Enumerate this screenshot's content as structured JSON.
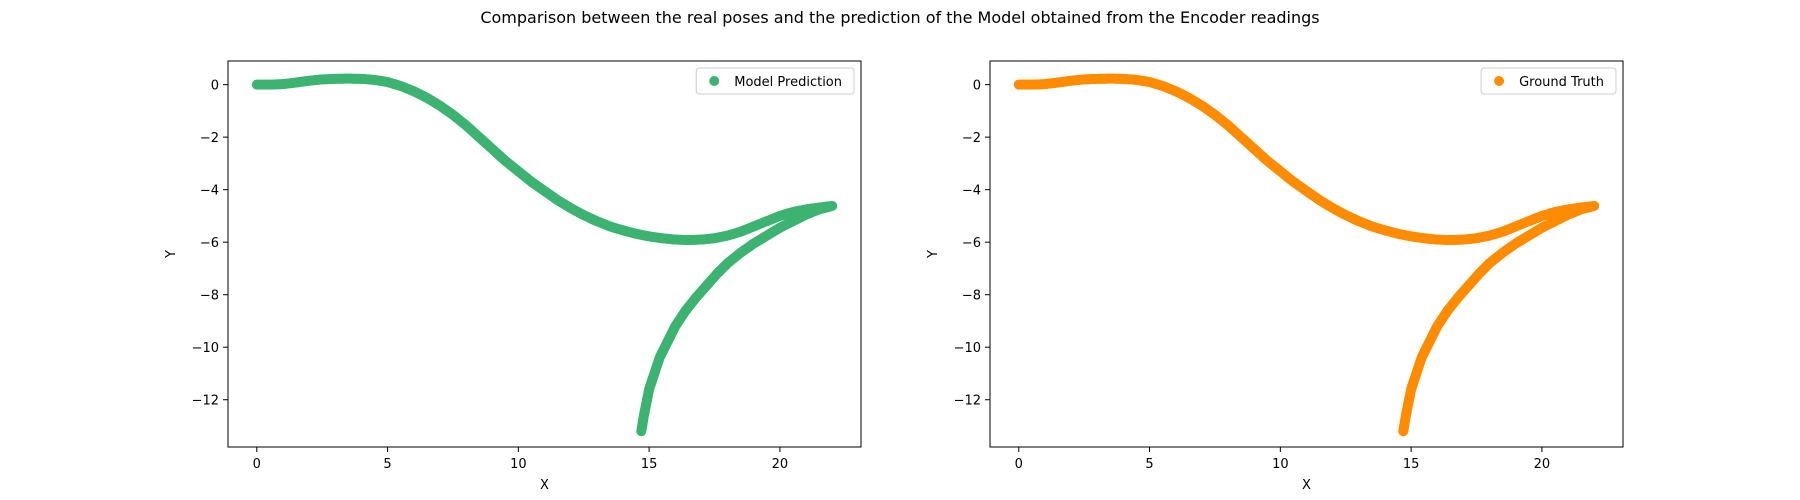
{
  "figure": {
    "title": "Comparison between the real poses and the prediction of the Model obtained from the Encoder readings"
  },
  "chart_data": [
    {
      "type": "scatter",
      "xlabel": "X",
      "ylabel": "Y",
      "xlim": [
        -1.1,
        23.1
      ],
      "ylim": [
        -13.8,
        0.9
      ],
      "xticks": [
        0,
        5,
        10,
        15,
        20
      ],
      "yticks": [
        0,
        -2,
        -4,
        -6,
        -8,
        -10,
        -12
      ],
      "grid": false,
      "legend_position": "top-right",
      "series": [
        {
          "name": "Model Prediction",
          "color": "#3cb371",
          "x": [
            0,
            0.5,
            1,
            1.5,
            2,
            2.5,
            3,
            3.5,
            4,
            4.5,
            5,
            5.5,
            6,
            6.5,
            7,
            7.5,
            8,
            8.5,
            9,
            9.5,
            10,
            10.5,
            11,
            11.5,
            12,
            12.5,
            13,
            13.5,
            14,
            14.5,
            15,
            15.5,
            16,
            16.5,
            17,
            17.5,
            18,
            18.5,
            19,
            19.5,
            20,
            20.5,
            21,
            21.5,
            22,
            21.5,
            21,
            20.5,
            20,
            19.5,
            19,
            18.5,
            18,
            17.6,
            17.2,
            16.8,
            16.4,
            16.0,
            15.7,
            15.4,
            15.2,
            15.0,
            14.9,
            14.8,
            14.75,
            14.7
          ],
          "y": [
            0.0,
            0.0,
            0.02,
            0.08,
            0.15,
            0.2,
            0.22,
            0.23,
            0.22,
            0.18,
            0.1,
            -0.05,
            -0.25,
            -0.5,
            -0.8,
            -1.15,
            -1.55,
            -2.0,
            -2.45,
            -2.9,
            -3.3,
            -3.7,
            -4.05,
            -4.4,
            -4.7,
            -4.97,
            -5.2,
            -5.4,
            -5.55,
            -5.68,
            -5.78,
            -5.85,
            -5.9,
            -5.92,
            -5.9,
            -5.85,
            -5.75,
            -5.6,
            -5.4,
            -5.2,
            -5.0,
            -4.85,
            -4.75,
            -4.68,
            -4.62,
            -4.75,
            -4.95,
            -5.2,
            -5.45,
            -5.75,
            -6.05,
            -6.4,
            -6.8,
            -7.2,
            -7.65,
            -8.1,
            -8.6,
            -9.2,
            -9.8,
            -10.4,
            -11.0,
            -11.6,
            -12.1,
            -12.6,
            -12.9,
            -13.2
          ]
        }
      ]
    },
    {
      "type": "scatter",
      "xlabel": "X",
      "ylabel": "Y",
      "xlim": [
        -1.1,
        23.1
      ],
      "ylim": [
        -13.8,
        0.9
      ],
      "xticks": [
        0,
        5,
        10,
        15,
        20
      ],
      "yticks": [
        0,
        -2,
        -4,
        -6,
        -8,
        -10,
        -12
      ],
      "grid": false,
      "legend_position": "top-right",
      "series": [
        {
          "name": "Ground Truth",
          "color": "#ff8c00",
          "x": [
            0,
            0.5,
            1,
            1.5,
            2,
            2.5,
            3,
            3.5,
            4,
            4.5,
            5,
            5.5,
            6,
            6.5,
            7,
            7.5,
            8,
            8.5,
            9,
            9.5,
            10,
            10.5,
            11,
            11.5,
            12,
            12.5,
            13,
            13.5,
            14,
            14.5,
            15,
            15.5,
            16,
            16.5,
            17,
            17.5,
            18,
            18.5,
            19,
            19.5,
            20,
            20.5,
            21,
            21.5,
            22,
            21.5,
            21,
            20.5,
            20,
            19.5,
            19,
            18.5,
            18,
            17.6,
            17.2,
            16.8,
            16.4,
            16.0,
            15.7,
            15.4,
            15.2,
            15.0,
            14.9,
            14.8,
            14.75,
            14.7
          ],
          "y": [
            0.0,
            0.0,
            0.02,
            0.08,
            0.15,
            0.2,
            0.22,
            0.23,
            0.22,
            0.18,
            0.1,
            -0.05,
            -0.25,
            -0.5,
            -0.8,
            -1.15,
            -1.55,
            -2.0,
            -2.45,
            -2.9,
            -3.3,
            -3.7,
            -4.05,
            -4.4,
            -4.7,
            -4.97,
            -5.2,
            -5.4,
            -5.55,
            -5.68,
            -5.78,
            -5.85,
            -5.9,
            -5.92,
            -5.9,
            -5.85,
            -5.75,
            -5.6,
            -5.4,
            -5.2,
            -5.0,
            -4.85,
            -4.75,
            -4.68,
            -4.62,
            -4.75,
            -4.95,
            -5.2,
            -5.45,
            -5.75,
            -6.05,
            -6.4,
            -6.8,
            -7.2,
            -7.65,
            -8.1,
            -8.6,
            -9.2,
            -9.8,
            -10.4,
            -11.0,
            -11.6,
            -12.1,
            -12.6,
            -12.9,
            -13.2
          ]
        }
      ]
    }
  ]
}
